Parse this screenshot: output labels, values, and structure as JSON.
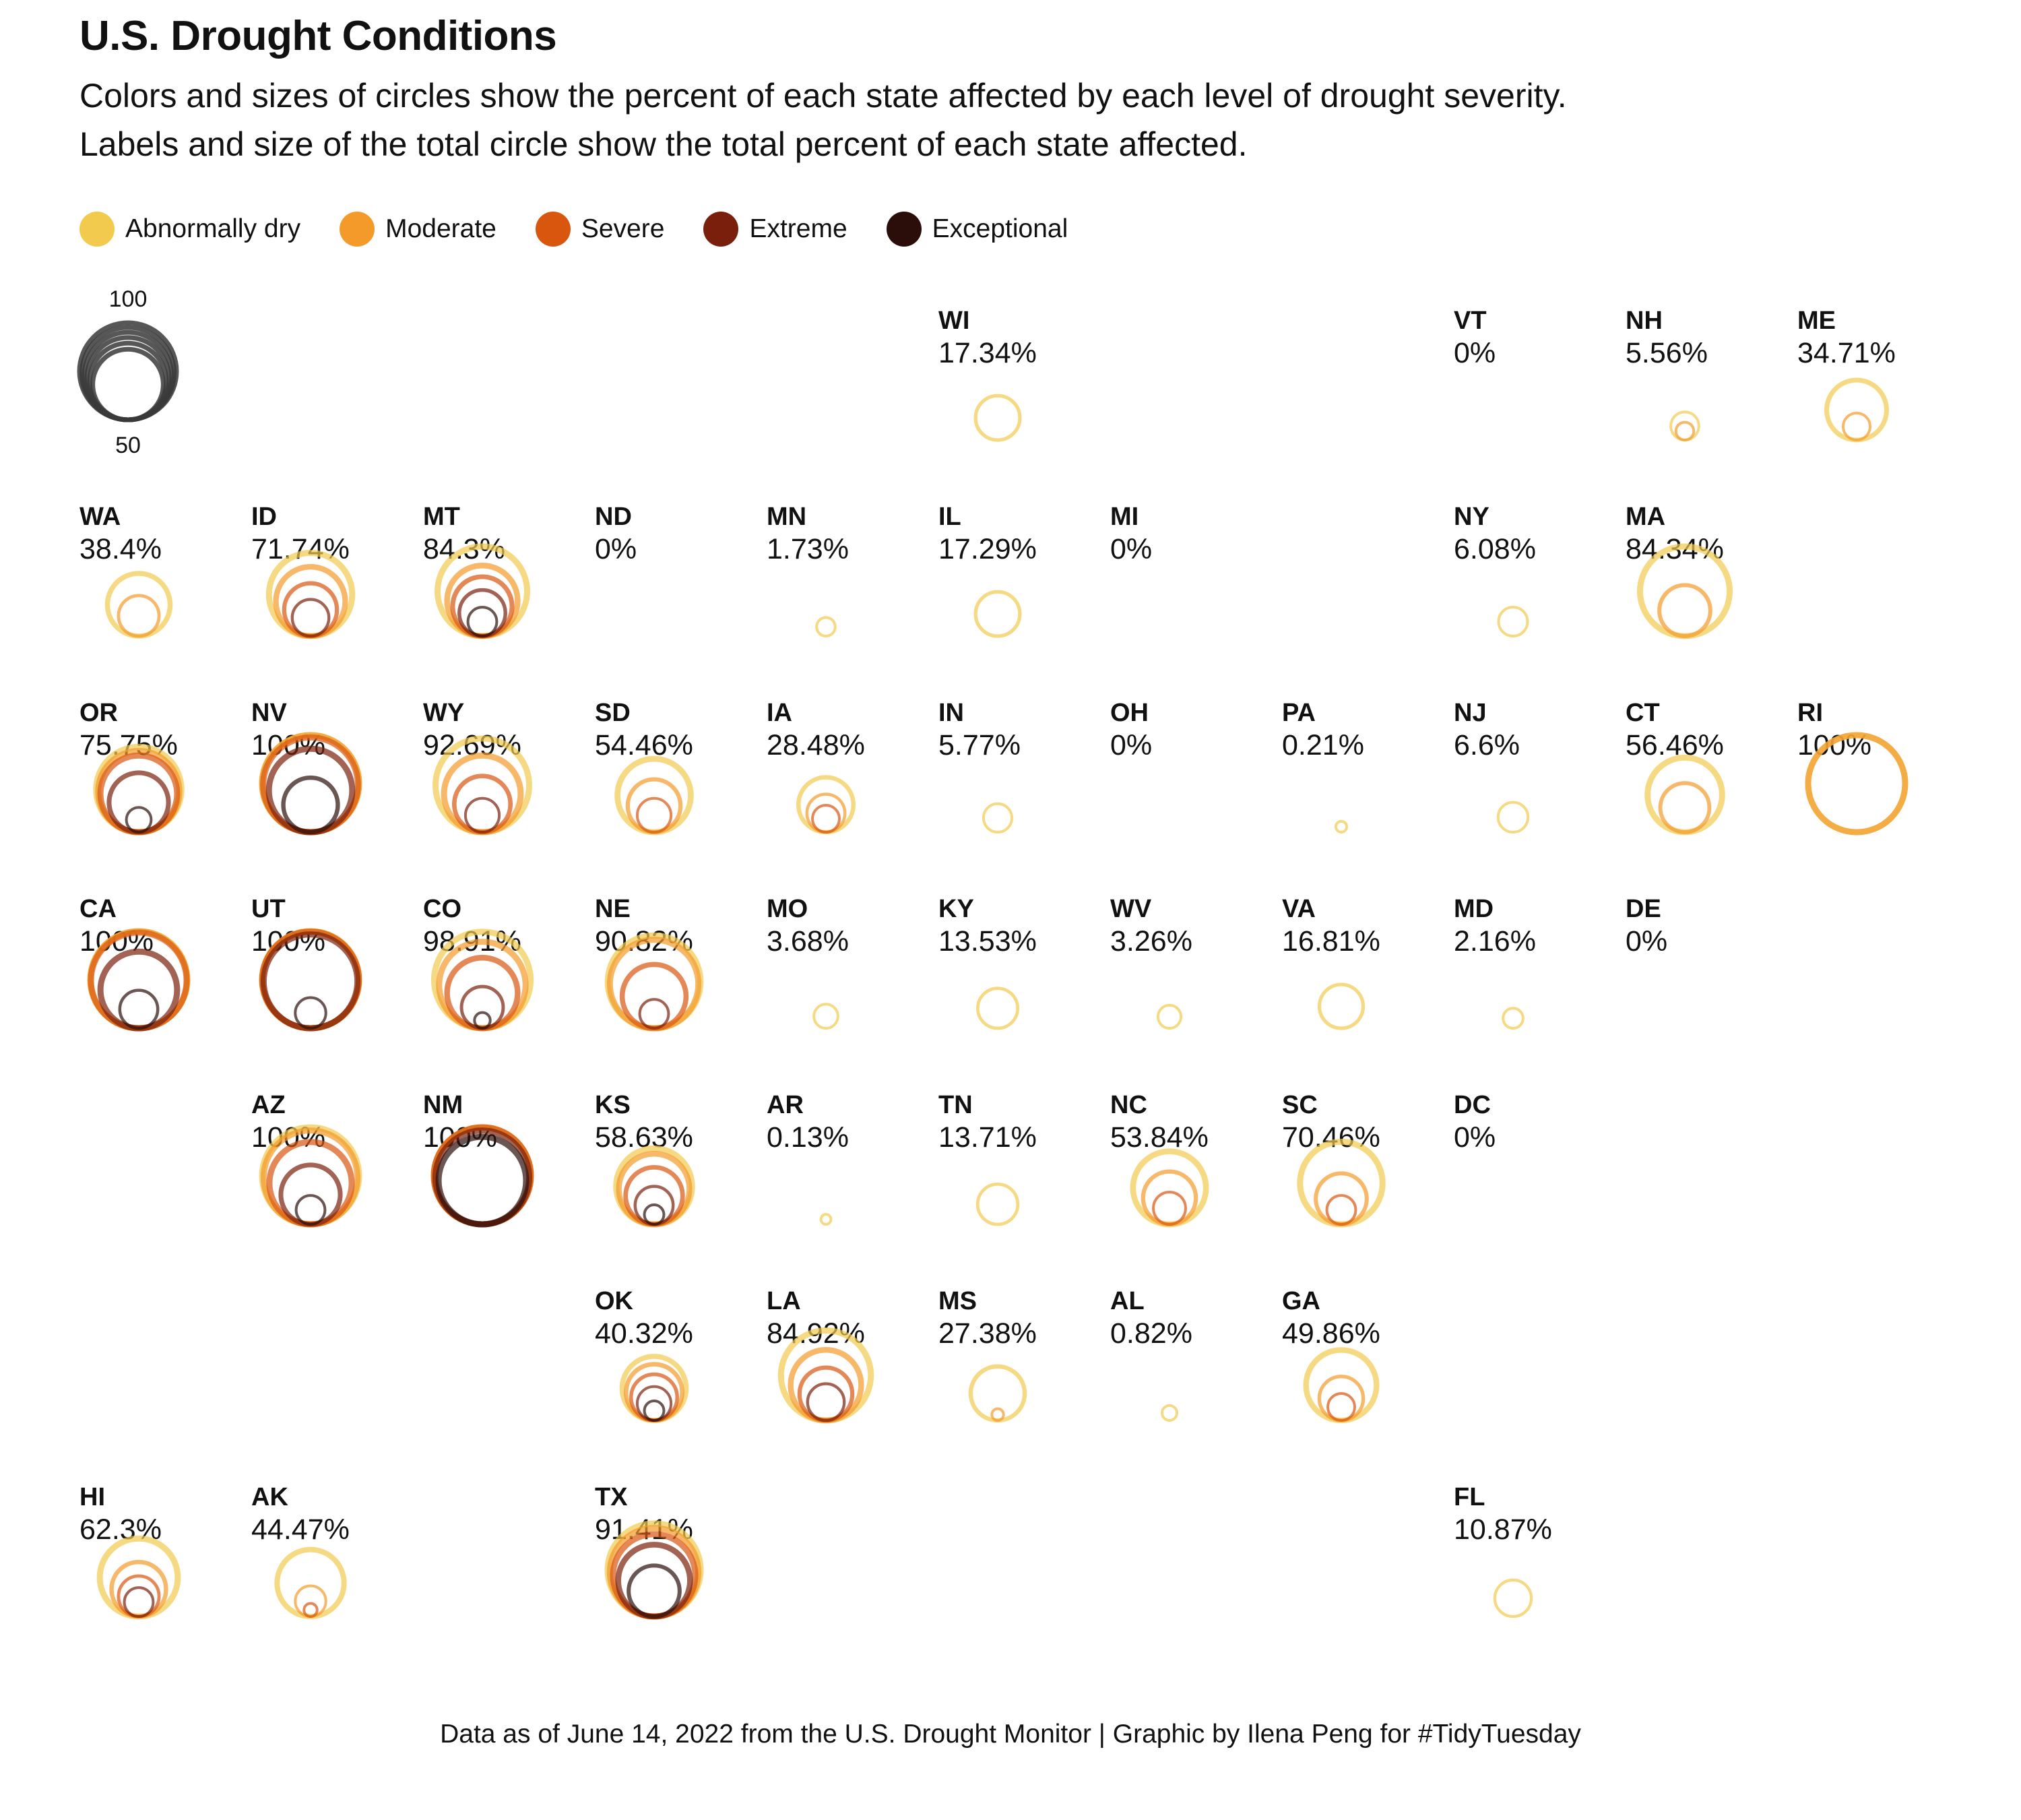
{
  "title": "U.S. Drought Conditions",
  "subtitle": [
    "Colors and sizes of circles show the percent of each state affected by each level of drought severity.",
    "Labels and size of the total circle show the total percent of each state affected."
  ],
  "caption": "Data as of June 14, 2022 from the U.S. Drought Monitor | Graphic by Ilena Peng for #TidyTuesday",
  "legend": [
    {
      "label": "Abnormally dry",
      "color": "#f2cb4e"
    },
    {
      "label": "Moderate",
      "color": "#f39a2a"
    },
    {
      "label": "Severe",
      "color": "#d9560f"
    },
    {
      "label": "Extreme",
      "color": "#7a1f0c"
    },
    {
      "label": "Exceptional",
      "color": "#2b0e0a"
    }
  ],
  "size_legend": {
    "labels": [
      "100",
      "50"
    ],
    "values": [
      100,
      90,
      80,
      70,
      60,
      50
    ],
    "color": "#3a3a3a"
  },
  "chart_data": {
    "type": "symbol-grid-map",
    "levels": [
      "Abnormally dry",
      "Moderate",
      "Severe",
      "Extreme",
      "Exceptional"
    ],
    "states": [
      {
        "abbr": "WI",
        "label": "17.34%",
        "row": 0,
        "col": 5,
        "values": [
          17.34,
          0,
          0,
          0,
          0
        ]
      },
      {
        "abbr": "VT",
        "label": "0%",
        "row": 0,
        "col": 8,
        "values": [
          0,
          0,
          0,
          0,
          0
        ]
      },
      {
        "abbr": "NH",
        "label": "5.56%",
        "row": 0,
        "col": 9,
        "values": [
          5.56,
          1.5,
          0,
          0,
          0
        ]
      },
      {
        "abbr": "ME",
        "label": "34.71%",
        "row": 0,
        "col": 10,
        "values": [
          34.71,
          5,
          0,
          0,
          0
        ]
      },
      {
        "abbr": "WA",
        "label": "38.4%",
        "row": 1,
        "col": 0,
        "values": [
          38.4,
          14,
          0,
          0,
          0
        ]
      },
      {
        "abbr": "ID",
        "label": "71.74%",
        "row": 1,
        "col": 1,
        "values": [
          71.74,
          48,
          26,
          11,
          0
        ]
      },
      {
        "abbr": "MT",
        "label": "84.3%",
        "row": 1,
        "col": 2,
        "values": [
          84.3,
          50,
          34,
          19,
          6
        ]
      },
      {
        "abbr": "ND",
        "label": "0%",
        "row": 1,
        "col": 3,
        "values": [
          0,
          0,
          0,
          0,
          0
        ]
      },
      {
        "abbr": "MN",
        "label": "1.73%",
        "row": 1,
        "col": 4,
        "values": [
          1.73,
          0,
          0,
          0,
          0
        ]
      },
      {
        "abbr": "IL",
        "label": "17.29%",
        "row": 1,
        "col": 5,
        "values": [
          17.29,
          0,
          0,
          0,
          0
        ]
      },
      {
        "abbr": "MI",
        "label": "0%",
        "row": 1,
        "col": 6,
        "values": [
          0,
          0,
          0,
          0,
          0
        ]
      },
      {
        "abbr": "NY",
        "label": "6.08%",
        "row": 1,
        "col": 8,
        "values": [
          6.08,
          0,
          0,
          0,
          0
        ]
      },
      {
        "abbr": "MA",
        "label": "84.34%",
        "row": 1,
        "col": 9,
        "values": [
          84.34,
          24,
          0,
          0,
          0
        ]
      },
      {
        "abbr": "OR",
        "label": "75.75%",
        "row": 2,
        "col": 0,
        "values": [
          75.75,
          68,
          60,
          34,
          4
        ]
      },
      {
        "abbr": "NV",
        "label": "100%",
        "row": 2,
        "col": 1,
        "values": [
          100,
          100,
          95,
          72,
          28
        ]
      },
      {
        "abbr": "WY",
        "label": "92.69%",
        "row": 2,
        "col": 2,
        "values": [
          92.69,
          60,
          30,
          9,
          0
        ]
      },
      {
        "abbr": "SD",
        "label": "54.46%",
        "row": 2,
        "col": 3,
        "values": [
          54.46,
          26,
          9,
          0,
          0
        ]
      },
      {
        "abbr": "IA",
        "label": "28.48%",
        "row": 2,
        "col": 4,
        "values": [
          28.48,
          12,
          5,
          0,
          0
        ]
      },
      {
        "abbr": "IN",
        "label": "5.77%",
        "row": 2,
        "col": 5,
        "values": [
          5.77,
          0,
          0,
          0,
          0
        ]
      },
      {
        "abbr": "OH",
        "label": "0%",
        "row": 2,
        "col": 6,
        "values": [
          0,
          0,
          0,
          0,
          0
        ]
      },
      {
        "abbr": "PA",
        "label": "0.21%",
        "row": 2,
        "col": 7,
        "values": [
          0.21,
          0,
          0,
          0,
          0
        ]
      },
      {
        "abbr": "NJ",
        "label": "6.6%",
        "row": 2,
        "col": 8,
        "values": [
          6.6,
          0,
          0,
          0,
          0
        ]
      },
      {
        "abbr": "CT",
        "label": "56.46%",
        "row": 2,
        "col": 9,
        "values": [
          56.46,
          22,
          0,
          0,
          0
        ]
      },
      {
        "abbr": "RI",
        "label": "100%",
        "row": 2,
        "col": 10,
        "values": [
          100,
          100,
          0,
          0,
          0
        ]
      },
      {
        "abbr": "CA",
        "label": "100%",
        "row": 3,
        "col": 0,
        "values": [
          100,
          100,
          97,
          60,
          12
        ]
      },
      {
        "abbr": "UT",
        "label": "100%",
        "row": 3,
        "col": 1,
        "values": [
          100,
          100,
          99,
          93,
          7
        ]
      },
      {
        "abbr": "CO",
        "label": "98.91%",
        "row": 3,
        "col": 2,
        "values": [
          98.91,
          78,
          50,
          15,
          1
        ]
      },
      {
        "abbr": "NE",
        "label": "90.82%",
        "row": 3,
        "col": 3,
        "values": [
          90.82,
          82,
          40,
          6,
          0
        ]
      },
      {
        "abbr": "MO",
        "label": "3.68%",
        "row": 3,
        "col": 4,
        "values": [
          3.68,
          0,
          0,
          0,
          0
        ]
      },
      {
        "abbr": "KY",
        "label": "13.53%",
        "row": 3,
        "col": 5,
        "values": [
          13.53,
          0,
          0,
          0,
          0
        ]
      },
      {
        "abbr": "WV",
        "label": "3.26%",
        "row": 3,
        "col": 6,
        "values": [
          3.26,
          0,
          0,
          0,
          0
        ]
      },
      {
        "abbr": "VA",
        "label": "16.81%",
        "row": 3,
        "col": 7,
        "values": [
          16.81,
          0,
          0,
          0,
          0
        ]
      },
      {
        "abbr": "MD",
        "label": "2.16%",
        "row": 3,
        "col": 8,
        "values": [
          2.16,
          0,
          0,
          0,
          0
        ]
      },
      {
        "abbr": "DE",
        "label": "0%",
        "row": 3,
        "col": 9,
        "values": [
          0,
          0,
          0,
          0,
          0
        ]
      },
      {
        "abbr": "AZ",
        "label": "100%",
        "row": 4,
        "col": 1,
        "values": [
          100,
          93,
          70,
          34,
          6
        ]
      },
      {
        "abbr": "NM",
        "label": "100%",
        "row": 4,
        "col": 2,
        "values": [
          100,
          100,
          100,
          93,
          80
        ]
      },
      {
        "abbr": "KS",
        "label": "58.63%",
        "row": 4,
        "col": 3,
        "values": [
          58.63,
          50,
          31,
          12,
          2
        ]
      },
      {
        "abbr": "AR",
        "label": "0.13%",
        "row": 4,
        "col": 4,
        "values": [
          0.13,
          0,
          0,
          0,
          0
        ]
      },
      {
        "abbr": "TN",
        "label": "13.71%",
        "row": 4,
        "col": 5,
        "values": [
          13.71,
          0,
          0,
          0,
          0
        ]
      },
      {
        "abbr": "NC",
        "label": "53.84%",
        "row": 4,
        "col": 6,
        "values": [
          53.84,
          26,
          8,
          0,
          0
        ]
      },
      {
        "abbr": "SC",
        "label": "70.46%",
        "row": 4,
        "col": 7,
        "values": [
          70.46,
          24,
          6,
          0,
          0
        ]
      },
      {
        "abbr": "DC",
        "label": "0%",
        "row": 4,
        "col": 8,
        "values": [
          0,
          0,
          0,
          0,
          0
        ]
      },
      {
        "abbr": "OK",
        "label": "40.32%",
        "row": 5,
        "col": 3,
        "values": [
          40.32,
          30,
          19,
          9,
          2
        ]
      },
      {
        "abbr": "LA",
        "label": "84.92%",
        "row": 5,
        "col": 4,
        "values": [
          84.92,
          50,
          26,
          11,
          0
        ]
      },
      {
        "abbr": "MS",
        "label": "27.38%",
        "row": 5,
        "col": 5,
        "values": [
          27.38,
          0.3,
          0,
          0,
          0
        ]
      },
      {
        "abbr": "AL",
        "label": "0.82%",
        "row": 5,
        "col": 6,
        "values": [
          0.82,
          0,
          0,
          0,
          0
        ]
      },
      {
        "abbr": "GA",
        "label": "49.86%",
        "row": 5,
        "col": 7,
        "values": [
          49.86,
          17,
          5,
          0,
          0
        ]
      },
      {
        "abbr": "HI",
        "label": "62.3%",
        "row": 6,
        "col": 0,
        "values": [
          62.3,
          28,
          14,
          6,
          0
        ]
      },
      {
        "abbr": "AK",
        "label": "44.47%",
        "row": 6,
        "col": 1,
        "values": [
          44.47,
          7,
          0.5,
          0,
          0
        ]
      },
      {
        "abbr": "TX",
        "label": "91.41%",
        "row": 6,
        "col": 3,
        "values": [
          91.41,
          82,
          70,
          52,
          24
        ]
      },
      {
        "abbr": "FL",
        "label": "10.87%",
        "row": 6,
        "col": 8,
        "values": [
          10.87,
          0,
          0,
          0,
          0
        ]
      }
    ]
  }
}
